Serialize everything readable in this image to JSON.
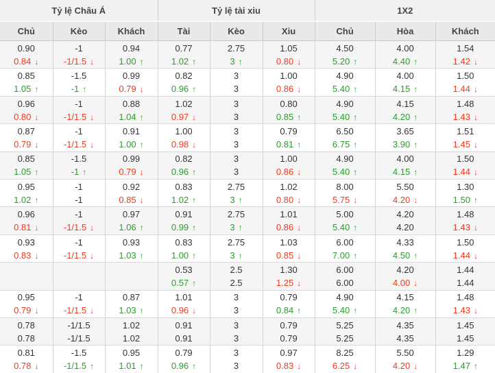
{
  "header": {
    "groups": [
      {
        "label": "Tỷ lệ Châu Á",
        "cols": [
          "Chủ",
          "Kèo",
          "Khách"
        ]
      },
      {
        "label": "Tỷ lệ tài xiu",
        "cols": [
          "Tài",
          "Kèo",
          "Xiu"
        ]
      },
      {
        "label": "1X2",
        "cols": [
          "Chủ",
          "Hòa",
          "Khách"
        ]
      }
    ]
  },
  "icons": {
    "up_arrow": "↑",
    "down_arrow": "↓"
  },
  "colors": {
    "up": "#2d9b2d",
    "down": "#ee3b1e",
    "neutral": "#333333"
  },
  "column_keys": [
    "asian-home",
    "asian-handicap",
    "asian-away",
    "ou-over",
    "ou-line",
    "ou-under",
    "1x2-home",
    "1x2-draw",
    "1x2-away"
  ],
  "rows": [
    {
      "cells": [
        [
          "0.90",
          "0.84",
          "down"
        ],
        [
          "-1",
          "-1/1.5",
          "down"
        ],
        [
          "0.94",
          "1.00",
          "up"
        ],
        [
          "0.77",
          "1.02",
          "up"
        ],
        [
          "2.75",
          "3",
          "up"
        ],
        [
          "1.05",
          "0.80",
          "down"
        ],
        [
          "4.50",
          "5.20",
          "up"
        ],
        [
          "4.00",
          "4.40",
          "up"
        ],
        [
          "1.54",
          "1.42",
          "down"
        ]
      ]
    },
    {
      "cells": [
        [
          "0.85",
          "1.05",
          "up"
        ],
        [
          "-1.5",
          "-1",
          "up"
        ],
        [
          "0.99",
          "0.79",
          "down"
        ],
        [
          "0.82",
          "0.96",
          "up"
        ],
        [
          "3",
          "3",
          ""
        ],
        [
          "1.00",
          "0.86",
          "down"
        ],
        [
          "4.90",
          "5.40",
          "up"
        ],
        [
          "4.00",
          "4.15",
          "up"
        ],
        [
          "1.50",
          "1.44",
          "down"
        ]
      ]
    },
    {
      "cells": [
        [
          "0.96",
          "0.80",
          "down"
        ],
        [
          "-1",
          "-1/1.5",
          "down"
        ],
        [
          "0.88",
          "1.04",
          "up"
        ],
        [
          "1.02",
          "0.97",
          "down"
        ],
        [
          "3",
          "3",
          ""
        ],
        [
          "0.80",
          "0.85",
          "up"
        ],
        [
          "4.90",
          "5.40",
          "up"
        ],
        [
          "4.15",
          "4.20",
          "up"
        ],
        [
          "1.48",
          "1.43",
          "down"
        ]
      ]
    },
    {
      "cells": [
        [
          "0.87",
          "0.79",
          "down"
        ],
        [
          "-1",
          "-1/1.5",
          "down"
        ],
        [
          "0.91",
          "1.00",
          "up"
        ],
        [
          "1.00",
          "0.98",
          "down"
        ],
        [
          "3",
          "3",
          ""
        ],
        [
          "0.79",
          "0.81",
          "up"
        ],
        [
          "6.50",
          "6.75",
          "up"
        ],
        [
          "3.65",
          "3.90",
          "up"
        ],
        [
          "1.51",
          "1.45",
          "down"
        ]
      ]
    },
    {
      "cells": [
        [
          "0.85",
          "1.05",
          "up"
        ],
        [
          "-1.5",
          "-1",
          "up"
        ],
        [
          "0.99",
          "0.79",
          "down"
        ],
        [
          "0.82",
          "0.96",
          "up"
        ],
        [
          "3",
          "3",
          ""
        ],
        [
          "1.00",
          "0.86",
          "down"
        ],
        [
          "4.90",
          "5.40",
          "up"
        ],
        [
          "4.00",
          "4.15",
          "up"
        ],
        [
          "1.50",
          "1.44",
          "down"
        ]
      ]
    },
    {
      "cells": [
        [
          "0.95",
          "1.02",
          "up"
        ],
        [
          "-1",
          "-1",
          ""
        ],
        [
          "0.92",
          "0.85",
          "down"
        ],
        [
          "0.83",
          "1.02",
          "up"
        ],
        [
          "2.75",
          "3",
          "up"
        ],
        [
          "1.02",
          "0.80",
          "down"
        ],
        [
          "8.00",
          "5.75",
          "down"
        ],
        [
          "5.50",
          "4.20",
          "down"
        ],
        [
          "1.30",
          "1.50",
          "up"
        ]
      ]
    },
    {
      "cells": [
        [
          "0.96",
          "0.81",
          "down"
        ],
        [
          "-1",
          "-1/1.5",
          "down"
        ],
        [
          "0.97",
          "1.06",
          "up"
        ],
        [
          "0.91",
          "0.99",
          "up"
        ],
        [
          "2.75",
          "3",
          "up"
        ],
        [
          "1.01",
          "0.86",
          "down"
        ],
        [
          "5.00",
          "5.40",
          "up"
        ],
        [
          "4.20",
          "4.20",
          ""
        ],
        [
          "1.48",
          "1.43",
          "down"
        ]
      ]
    },
    {
      "cells": [
        [
          "0.93",
          "0.83",
          "down"
        ],
        [
          "-1",
          "-1/1.5",
          "down"
        ],
        [
          "0.93",
          "1.03",
          "up"
        ],
        [
          "0.83",
          "1.00",
          "up"
        ],
        [
          "2.75",
          "3",
          "up"
        ],
        [
          "1.03",
          "0.85",
          "down"
        ],
        [
          "6.00",
          "7.00",
          "up"
        ],
        [
          "4.33",
          "4.50",
          "up"
        ],
        [
          "1.50",
          "1.44",
          "down"
        ]
      ]
    },
    {
      "cells": [
        [
          "",
          "",
          ""
        ],
        [
          "",
          "",
          ""
        ],
        [
          "",
          "",
          ""
        ],
        [
          "0.53",
          "0.57",
          "up"
        ],
        [
          "2.5",
          "2.5",
          ""
        ],
        [
          "1.30",
          "1.25",
          "down"
        ],
        [
          "6.00",
          "6.00",
          ""
        ],
        [
          "4.20",
          "4.00",
          "down"
        ],
        [
          "1.44",
          "1.44",
          ""
        ]
      ]
    },
    {
      "cells": [
        [
          "0.95",
          "0.79",
          "down"
        ],
        [
          "-1",
          "-1/1.5",
          "down"
        ],
        [
          "0.87",
          "1.03",
          "up"
        ],
        [
          "1.01",
          "0.96",
          "down"
        ],
        [
          "3",
          "3",
          ""
        ],
        [
          "0.79",
          "0.84",
          "up"
        ],
        [
          "4.90",
          "5.40",
          "up"
        ],
        [
          "4.15",
          "4.20",
          "up"
        ],
        [
          "1.48",
          "1.43",
          "down"
        ]
      ]
    },
    {
      "cells": [
        [
          "0.78",
          "0.78",
          ""
        ],
        [
          "-1/1.5",
          "-1/1.5",
          ""
        ],
        [
          "1.02",
          "1.02",
          ""
        ],
        [
          "0.91",
          "0.91",
          ""
        ],
        [
          "3",
          "3",
          ""
        ],
        [
          "0.79",
          "0.79",
          ""
        ],
        [
          "5.25",
          "5.25",
          ""
        ],
        [
          "4.35",
          "4.35",
          ""
        ],
        [
          "1.45",
          "1.45",
          ""
        ]
      ]
    },
    {
      "cells": [
        [
          "0.81",
          "0.78",
          "down"
        ],
        [
          "-1.5",
          "-1/1.5",
          "up"
        ],
        [
          "0.95",
          "1.01",
          "up"
        ],
        [
          "0.79",
          "0.96",
          "up"
        ],
        [
          "3",
          "3",
          ""
        ],
        [
          "0.97",
          "0.83",
          "down"
        ],
        [
          "8.25",
          "6.25",
          "down"
        ],
        [
          "5.50",
          "4.20",
          "down"
        ],
        [
          "1.29",
          "1.47",
          "up"
        ]
      ]
    }
  ]
}
